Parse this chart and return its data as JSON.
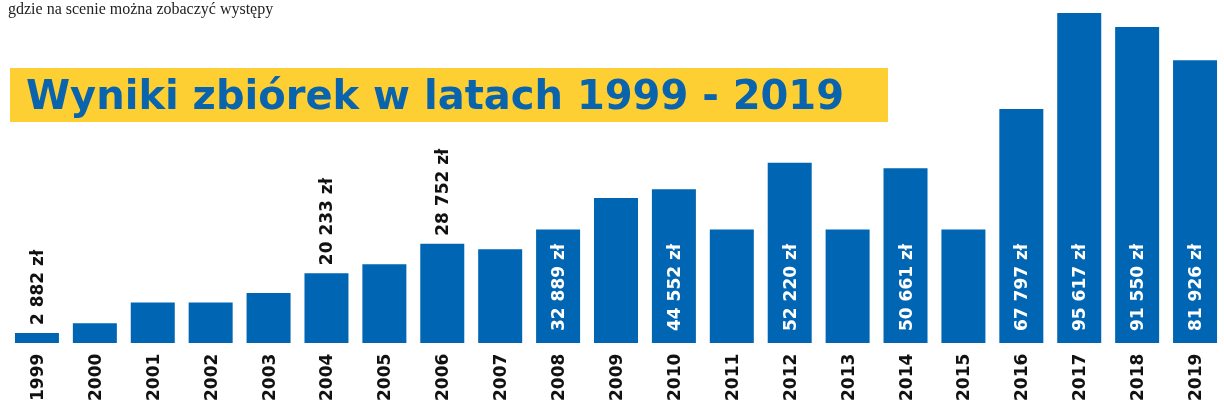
{
  "chart_data": {
    "type": "bar",
    "title": "Wyniki zbiórek w latach 1999 - 2019",
    "annotations": [
      "gdzie na scenie można zobaczyć występy"
    ],
    "categories": [
      "1999",
      "2000",
      "2001",
      "2002",
      "2003",
      "2004",
      "2005",
      "2006",
      "2007",
      "2008",
      "2009",
      "2010",
      "2011",
      "2012",
      "2013",
      "2014",
      "2015",
      "2016",
      "2017",
      "2018",
      "2019"
    ],
    "values": [
      2882,
      5700,
      11700,
      11700,
      14500,
      20233,
      22800,
      28752,
      27200,
      32889,
      42000,
      44552,
      32900,
      52220,
      32900,
      50661,
      32900,
      67797,
      95617,
      91550,
      81926
    ],
    "value_labels": [
      "2 882 zł",
      null,
      null,
      null,
      null,
      "20 233 zł",
      null,
      "28 752 zł",
      null,
      "32 889 zł",
      null,
      "44 552 zł",
      null,
      "52 220 zł",
      null,
      "50 661 zł",
      null,
      "67 797 zł",
      "95 617 zł",
      "91 550 zł",
      "81 926 zł"
    ],
    "color": "#0066b3",
    "grid": false,
    "legend": false
  }
}
